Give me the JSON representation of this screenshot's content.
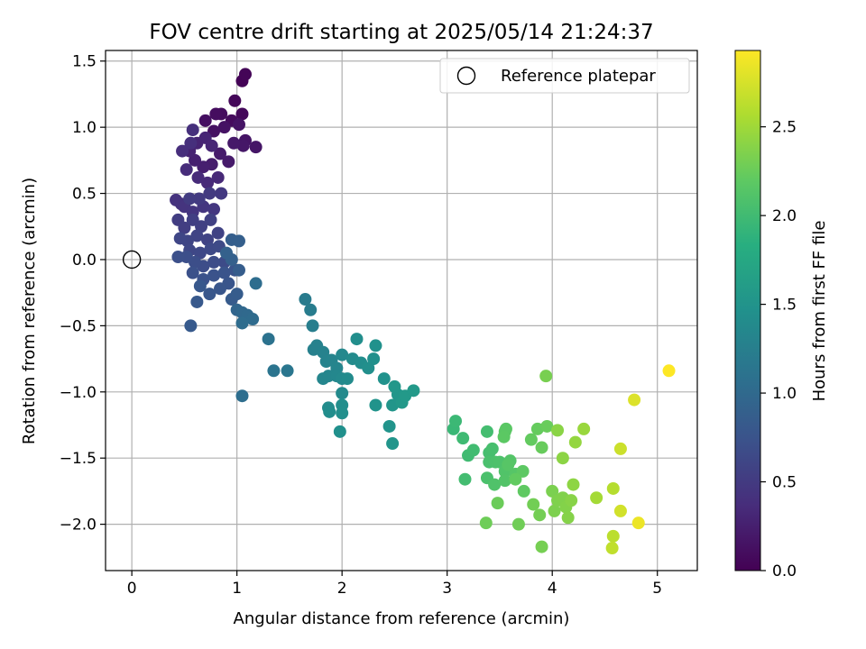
{
  "chart_data": {
    "type": "scatter",
    "title": "FOV centre drift starting at 2025/05/14 21:24:37",
    "xlabel": "Angular distance from reference (arcmin)",
    "ylabel": "Rotation from reference (arcmin)",
    "xlim": [
      -0.25,
      5.38
    ],
    "ylim": [
      -2.35,
      1.58
    ],
    "x_ticks": [
      0,
      1,
      2,
      3,
      4,
      5
    ],
    "x_tick_labels": [
      "0",
      "1",
      "2",
      "3",
      "4",
      "5"
    ],
    "y_ticks": [
      -2.0,
      -1.5,
      -1.0,
      -0.5,
      0.0,
      0.5,
      1.0,
      1.5
    ],
    "y_tick_labels": [
      "−2.0",
      "−1.5",
      "−1.0",
      "−0.5",
      "0.0",
      "0.5",
      "1.0",
      "1.5"
    ],
    "grid": true,
    "legend": {
      "placement": "top-right",
      "entries": [
        "Reference platepar"
      ]
    },
    "reference_point": {
      "name": "Reference platepar",
      "x": 0,
      "y": 0
    },
    "colorbar": {
      "label": "Hours from first FF file",
      "range": [
        0,
        2.93
      ],
      "ticks": [
        0.0,
        0.5,
        1.0,
        1.5,
        2.0,
        2.5
      ],
      "tick_labels": [
        "0.0",
        "0.5",
        "1.0",
        "1.5",
        "2.0",
        "2.5"
      ],
      "colormap": "viridis"
    },
    "points": [
      [
        1.05,
        1.35,
        0.02
      ],
      [
        1.08,
        1.4,
        0.03
      ],
      [
        0.98,
        1.2,
        0.05
      ],
      [
        1.05,
        1.1,
        0.06
      ],
      [
        0.95,
        1.05,
        0.08
      ],
      [
        0.85,
        1.1,
        0.09
      ],
      [
        0.8,
        1.1,
        0.1
      ],
      [
        0.7,
        1.05,
        0.12
      ],
      [
        0.78,
        0.97,
        0.13
      ],
      [
        0.88,
        1.0,
        0.14
      ],
      [
        1.02,
        1.02,
        0.15
      ],
      [
        1.08,
        0.9,
        0.16
      ],
      [
        1.18,
        0.85,
        0.17
      ],
      [
        1.06,
        0.86,
        0.18
      ],
      [
        0.97,
        0.88,
        0.2
      ],
      [
        0.92,
        0.74,
        0.21
      ],
      [
        0.84,
        0.8,
        0.22
      ],
      [
        0.76,
        0.72,
        0.23
      ],
      [
        0.68,
        0.7,
        0.25
      ],
      [
        0.6,
        0.75,
        0.26
      ],
      [
        0.55,
        0.82,
        0.28
      ],
      [
        0.62,
        0.88,
        0.29
      ],
      [
        0.7,
        0.92,
        0.3
      ],
      [
        0.76,
        0.86,
        0.31
      ],
      [
        0.82,
        0.62,
        0.33
      ],
      [
        0.72,
        0.58,
        0.34
      ],
      [
        0.63,
        0.62,
        0.35
      ],
      [
        0.52,
        0.68,
        0.36
      ],
      [
        0.48,
        0.82,
        0.38
      ],
      [
        0.56,
        0.88,
        0.39
      ],
      [
        0.58,
        0.98,
        0.4
      ],
      [
        0.47,
        0.42,
        0.42
      ],
      [
        0.42,
        0.45,
        0.43
      ],
      [
        0.5,
        0.4,
        0.44
      ],
      [
        0.58,
        0.36,
        0.45
      ],
      [
        0.68,
        0.4,
        0.46
      ],
      [
        0.78,
        0.38,
        0.47
      ],
      [
        0.85,
        0.5,
        0.48
      ],
      [
        0.74,
        0.5,
        0.49
      ],
      [
        0.64,
        0.46,
        0.5
      ],
      [
        0.55,
        0.46,
        0.51
      ],
      [
        0.44,
        0.3,
        0.52
      ],
      [
        0.5,
        0.24,
        0.53
      ],
      [
        0.58,
        0.3,
        0.54
      ],
      [
        0.66,
        0.25,
        0.55
      ],
      [
        0.75,
        0.3,
        0.56
      ],
      [
        0.82,
        0.2,
        0.57
      ],
      [
        0.72,
        0.15,
        0.58
      ],
      [
        0.62,
        0.18,
        0.59
      ],
      [
        0.53,
        0.14,
        0.6
      ],
      [
        0.46,
        0.16,
        0.61
      ],
      [
        0.55,
        0.07,
        0.62
      ],
      [
        0.65,
        0.05,
        0.63
      ],
      [
        0.75,
        0.08,
        0.64
      ],
      [
        0.83,
        0.1,
        0.65
      ],
      [
        0.88,
        -0.02,
        0.66
      ],
      [
        0.78,
        -0.02,
        0.67
      ],
      [
        0.68,
        -0.05,
        0.68
      ],
      [
        0.6,
        -0.02,
        0.69
      ],
      [
        0.52,
        0.02,
        0.7
      ],
      [
        0.44,
        0.02,
        0.71
      ],
      [
        0.58,
        -0.1,
        0.72
      ],
      [
        0.68,
        -0.15,
        0.73
      ],
      [
        0.78,
        -0.12,
        0.74
      ],
      [
        0.88,
        -0.1,
        0.75
      ],
      [
        0.98,
        -0.08,
        0.76
      ],
      [
        0.92,
        -0.18,
        0.77
      ],
      [
        0.84,
        -0.22,
        0.78
      ],
      [
        0.74,
        -0.26,
        0.79
      ],
      [
        0.65,
        -0.2,
        0.8
      ],
      [
        0.62,
        -0.32,
        0.81
      ],
      [
        0.56,
        -0.5,
        0.82
      ],
      [
        0.95,
        -0.3,
        0.84
      ],
      [
        1.0,
        -0.26,
        0.85
      ],
      [
        1.02,
        -0.08,
        0.86
      ],
      [
        0.95,
        0.15,
        0.87
      ],
      [
        1.02,
        0.14,
        0.88
      ],
      [
        0.95,
        0.0,
        0.89
      ],
      [
        0.9,
        0.05,
        0.9
      ],
      [
        1.0,
        -0.38,
        0.95
      ],
      [
        1.05,
        -0.4,
        0.98
      ],
      [
        1.1,
        -0.42,
        1.0
      ],
      [
        1.15,
        -0.45,
        1.02
      ],
      [
        1.05,
        -0.48,
        1.03
      ],
      [
        1.18,
        -0.18,
        1.04
      ],
      [
        1.05,
        -1.03,
        1.05
      ],
      [
        1.3,
        -0.6,
        1.1
      ],
      [
        1.35,
        -0.84,
        1.12
      ],
      [
        1.48,
        -0.84,
        1.15
      ],
      [
        1.65,
        -0.3,
        1.2
      ],
      [
        1.7,
        -0.38,
        1.22
      ],
      [
        1.72,
        -0.5,
        1.24
      ],
      [
        1.73,
        -0.68,
        1.26
      ],
      [
        1.76,
        -0.65,
        1.28
      ],
      [
        1.82,
        -0.7,
        1.29
      ],
      [
        1.85,
        -0.77,
        1.3
      ],
      [
        1.9,
        -0.76,
        1.31
      ],
      [
        1.95,
        -0.82,
        1.32
      ],
      [
        1.82,
        -0.9,
        1.33
      ],
      [
        1.87,
        -0.88,
        1.34
      ],
      [
        1.95,
        -0.88,
        1.35
      ],
      [
        2.0,
        -0.72,
        1.36
      ],
      [
        2.0,
        -0.9,
        1.37
      ],
      [
        2.0,
        -1.01,
        1.38
      ],
      [
        2.05,
        -0.9,
        1.39
      ],
      [
        2.1,
        -0.75,
        1.4
      ],
      [
        2.18,
        -0.78,
        1.42
      ],
      [
        2.25,
        -0.82,
        1.44
      ],
      [
        2.3,
        -0.75,
        1.45
      ],
      [
        2.32,
        -0.65,
        1.46
      ],
      [
        2.14,
        -0.6,
        1.43
      ],
      [
        2.4,
        -0.9,
        1.48
      ],
      [
        1.87,
        -1.12,
        1.41
      ],
      [
        1.88,
        -1.15,
        1.42
      ],
      [
        2.0,
        -1.1,
        1.43
      ],
      [
        2.0,
        -1.16,
        1.44
      ],
      [
        1.98,
        -1.3,
        1.45
      ],
      [
        2.32,
        -1.1,
        1.49
      ],
      [
        2.45,
        -1.26,
        1.5
      ],
      [
        2.48,
        -1.39,
        1.51
      ],
      [
        2.48,
        -1.1,
        1.52
      ],
      [
        2.53,
        -1.02,
        1.53
      ],
      [
        2.5,
        -0.96,
        1.54
      ],
      [
        2.57,
        -1.08,
        1.55
      ],
      [
        2.6,
        -1.03,
        1.56
      ],
      [
        2.68,
        -0.99,
        1.57
      ],
      [
        3.06,
        -1.28,
        1.95
      ],
      [
        3.08,
        -1.22,
        1.97
      ],
      [
        3.15,
        -1.35,
        1.99
      ],
      [
        3.2,
        -1.48,
        2.0
      ],
      [
        3.25,
        -1.44,
        2.01
      ],
      [
        3.17,
        -1.66,
        2.02
      ],
      [
        3.38,
        -1.3,
        2.03
      ],
      [
        3.4,
        -1.46,
        2.04
      ],
      [
        3.43,
        -1.43,
        2.05
      ],
      [
        3.4,
        -1.53,
        2.06
      ],
      [
        3.38,
        -1.65,
        2.07
      ],
      [
        3.46,
        -1.53,
        2.08
      ],
      [
        3.5,
        -1.53,
        2.09
      ],
      [
        3.45,
        -1.7,
        2.1
      ],
      [
        3.55,
        -1.6,
        2.11
      ],
      [
        3.55,
        -1.67,
        2.12
      ],
      [
        3.6,
        -1.52,
        2.13
      ],
      [
        3.65,
        -1.62,
        2.14
      ],
      [
        3.58,
        -1.55,
        2.15
      ],
      [
        3.55,
        -1.3,
        2.16
      ],
      [
        3.56,
        -1.28,
        2.17
      ],
      [
        3.54,
        -1.34,
        2.18
      ],
      [
        3.72,
        -1.6,
        2.19
      ],
      [
        3.73,
        -1.75,
        2.2
      ],
      [
        3.65,
        -1.66,
        2.21
      ],
      [
        3.8,
        -1.36,
        2.22
      ],
      [
        3.86,
        -1.28,
        2.23
      ],
      [
        3.9,
        -1.42,
        2.24
      ],
      [
        3.95,
        -1.26,
        2.25
      ],
      [
        3.48,
        -1.84,
        2.26
      ],
      [
        3.37,
        -1.99,
        2.27
      ],
      [
        3.68,
        -2.0,
        2.28
      ],
      [
        3.82,
        -1.85,
        2.29
      ],
      [
        3.88,
        -1.93,
        2.3
      ],
      [
        3.9,
        -2.17,
        2.31
      ],
      [
        3.94,
        -0.88,
        2.32
      ],
      [
        4.0,
        -1.75,
        2.33
      ],
      [
        4.02,
        -1.9,
        2.34
      ],
      [
        4.05,
        -1.82,
        2.35
      ],
      [
        4.1,
        -1.8,
        2.36
      ],
      [
        4.13,
        -1.87,
        2.37
      ],
      [
        4.15,
        -1.95,
        2.38
      ],
      [
        4.18,
        -1.82,
        2.39
      ],
      [
        4.05,
        -1.29,
        2.4
      ],
      [
        4.1,
        -1.5,
        2.41
      ],
      [
        4.2,
        -1.7,
        2.42
      ],
      [
        4.22,
        -1.38,
        2.45
      ],
      [
        4.3,
        -1.28,
        2.47
      ],
      [
        4.42,
        -1.8,
        2.52
      ],
      [
        4.58,
        -1.73,
        2.6
      ],
      [
        4.58,
        -2.09,
        2.63
      ],
      [
        4.57,
        -2.18,
        2.65
      ],
      [
        4.65,
        -1.43,
        2.7
      ],
      [
        4.65,
        -1.9,
        2.73
      ],
      [
        4.78,
        -1.06,
        2.78
      ],
      [
        4.82,
        -1.99,
        2.85
      ],
      [
        5.11,
        -0.84,
        2.93
      ]
    ]
  }
}
